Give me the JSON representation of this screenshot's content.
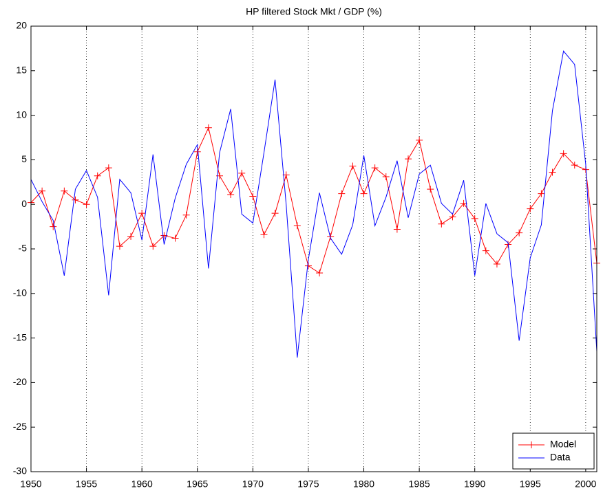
{
  "chart_data": {
    "type": "line",
    "title": "HP filtered Stock Mkt / GDP (%)",
    "x": [
      1950,
      1951,
      1952,
      1953,
      1954,
      1955,
      1956,
      1957,
      1958,
      1959,
      1960,
      1961,
      1962,
      1963,
      1964,
      1965,
      1966,
      1967,
      1968,
      1969,
      1970,
      1971,
      1972,
      1973,
      1974,
      1975,
      1976,
      1977,
      1978,
      1979,
      1980,
      1981,
      1982,
      1983,
      1984,
      1985,
      1986,
      1987,
      1988,
      1989,
      1990,
      1991,
      1992,
      1993,
      1994,
      1995,
      1996,
      1997,
      1998,
      1999,
      2000,
      2001
    ],
    "series": [
      {
        "name": "Model",
        "color": "#ff0000",
        "marker": "+",
        "values": [
          0.2,
          1.5,
          -2.5,
          1.5,
          0.5,
          0,
          3.2,
          4.1,
          -4.7,
          -3.6,
          -1,
          -4.7,
          -3.5,
          -3.8,
          -1.2,
          5.9,
          8.6,
          3.2,
          1.1,
          3.5,
          0.9,
          -3.4,
          -1,
          3.3,
          -2.4,
          -6.9,
          -7.7,
          -3.6,
          1.2,
          4.3,
          1.2,
          4.1,
          3.1,
          -2.8,
          5.1,
          7.2,
          1.7,
          -2.2,
          -1.4,
          0.1,
          -1.6,
          -5.2,
          -6.7,
          -4.5,
          -3.2,
          -0.5,
          1.2,
          3.6,
          5.7,
          4.4,
          3.9,
          -6.6
        ]
      },
      {
        "name": "Data",
        "color": "#0000ff",
        "values": [
          2.8,
          0.3,
          -1.8,
          -8,
          1.7,
          3.8,
          0.8,
          -10.2,
          2.8,
          1.3,
          -4,
          5.6,
          -4.5,
          0.7,
          4.5,
          6.7,
          -7.2,
          5.8,
          10.7,
          -1.1,
          -2.1,
          5.8,
          14,
          0,
          -17.2,
          -6.2,
          1.3,
          -3.8,
          -5.6,
          -2.3,
          5.5,
          -2.4,
          0.8,
          4.9,
          -1.5,
          3.4,
          4.4,
          0.1,
          -1.1,
          2.7,
          -8,
          0.1,
          -3.3,
          -4.3,
          -15.3,
          -6,
          -2.3,
          10.5,
          17.2,
          15.7,
          4.5,
          -16.5
        ]
      }
    ],
    "xlim": [
      1950,
      2001
    ],
    "xticks": [
      1950,
      1955,
      1960,
      1965,
      1970,
      1975,
      1980,
      1985,
      1990,
      1995,
      2000
    ],
    "ylim": [
      -30,
      20
    ],
    "yticks": [
      -30,
      -25,
      -20,
      -15,
      -10,
      -5,
      0,
      5,
      10,
      15,
      20
    ],
    "x_grid": true,
    "legend": "lower right"
  }
}
